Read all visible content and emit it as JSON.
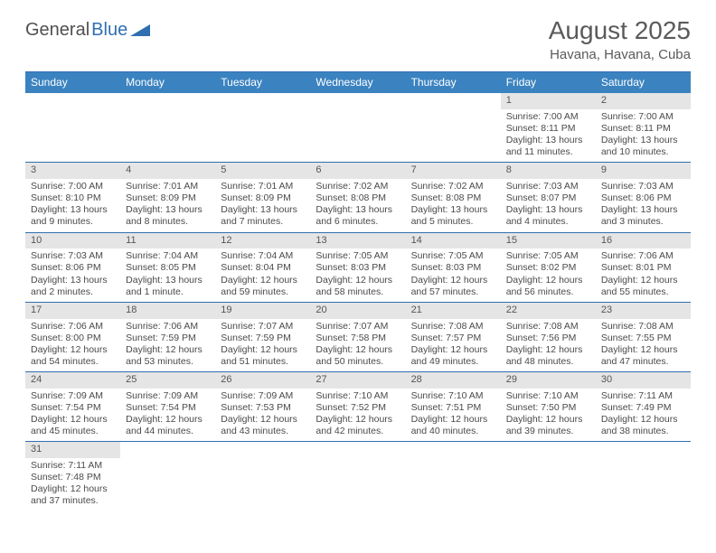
{
  "brand": {
    "part1": "General",
    "part2": "Blue"
  },
  "title": "August 2025",
  "location": "Havana, Havana, Cuba",
  "colors": {
    "header_bg": "#3b83c0",
    "rule": "#2f6fb0",
    "daynum_bg": "#e5e5e5",
    "text": "#4a4a4a"
  },
  "dow": [
    "Sunday",
    "Monday",
    "Tuesday",
    "Wednesday",
    "Thursday",
    "Friday",
    "Saturday"
  ],
  "weeks": [
    [
      null,
      null,
      null,
      null,
      null,
      {
        "n": "1",
        "sr": "7:00 AM",
        "ss": "8:11 PM",
        "dl": "13 hours and 11 minutes."
      },
      {
        "n": "2",
        "sr": "7:00 AM",
        "ss": "8:11 PM",
        "dl": "13 hours and 10 minutes."
      }
    ],
    [
      {
        "n": "3",
        "sr": "7:00 AM",
        "ss": "8:10 PM",
        "dl": "13 hours and 9 minutes."
      },
      {
        "n": "4",
        "sr": "7:01 AM",
        "ss": "8:09 PM",
        "dl": "13 hours and 8 minutes."
      },
      {
        "n": "5",
        "sr": "7:01 AM",
        "ss": "8:09 PM",
        "dl": "13 hours and 7 minutes."
      },
      {
        "n": "6",
        "sr": "7:02 AM",
        "ss": "8:08 PM",
        "dl": "13 hours and 6 minutes."
      },
      {
        "n": "7",
        "sr": "7:02 AM",
        "ss": "8:08 PM",
        "dl": "13 hours and 5 minutes."
      },
      {
        "n": "8",
        "sr": "7:03 AM",
        "ss": "8:07 PM",
        "dl": "13 hours and 4 minutes."
      },
      {
        "n": "9",
        "sr": "7:03 AM",
        "ss": "8:06 PM",
        "dl": "13 hours and 3 minutes."
      }
    ],
    [
      {
        "n": "10",
        "sr": "7:03 AM",
        "ss": "8:06 PM",
        "dl": "13 hours and 2 minutes."
      },
      {
        "n": "11",
        "sr": "7:04 AM",
        "ss": "8:05 PM",
        "dl": "13 hours and 1 minute."
      },
      {
        "n": "12",
        "sr": "7:04 AM",
        "ss": "8:04 PM",
        "dl": "12 hours and 59 minutes."
      },
      {
        "n": "13",
        "sr": "7:05 AM",
        "ss": "8:03 PM",
        "dl": "12 hours and 58 minutes."
      },
      {
        "n": "14",
        "sr": "7:05 AM",
        "ss": "8:03 PM",
        "dl": "12 hours and 57 minutes."
      },
      {
        "n": "15",
        "sr": "7:05 AM",
        "ss": "8:02 PM",
        "dl": "12 hours and 56 minutes."
      },
      {
        "n": "16",
        "sr": "7:06 AM",
        "ss": "8:01 PM",
        "dl": "12 hours and 55 minutes."
      }
    ],
    [
      {
        "n": "17",
        "sr": "7:06 AM",
        "ss": "8:00 PM",
        "dl": "12 hours and 54 minutes."
      },
      {
        "n": "18",
        "sr": "7:06 AM",
        "ss": "7:59 PM",
        "dl": "12 hours and 53 minutes."
      },
      {
        "n": "19",
        "sr": "7:07 AM",
        "ss": "7:59 PM",
        "dl": "12 hours and 51 minutes."
      },
      {
        "n": "20",
        "sr": "7:07 AM",
        "ss": "7:58 PM",
        "dl": "12 hours and 50 minutes."
      },
      {
        "n": "21",
        "sr": "7:08 AM",
        "ss": "7:57 PM",
        "dl": "12 hours and 49 minutes."
      },
      {
        "n": "22",
        "sr": "7:08 AM",
        "ss": "7:56 PM",
        "dl": "12 hours and 48 minutes."
      },
      {
        "n": "23",
        "sr": "7:08 AM",
        "ss": "7:55 PM",
        "dl": "12 hours and 47 minutes."
      }
    ],
    [
      {
        "n": "24",
        "sr": "7:09 AM",
        "ss": "7:54 PM",
        "dl": "12 hours and 45 minutes."
      },
      {
        "n": "25",
        "sr": "7:09 AM",
        "ss": "7:54 PM",
        "dl": "12 hours and 44 minutes."
      },
      {
        "n": "26",
        "sr": "7:09 AM",
        "ss": "7:53 PM",
        "dl": "12 hours and 43 minutes."
      },
      {
        "n": "27",
        "sr": "7:10 AM",
        "ss": "7:52 PM",
        "dl": "12 hours and 42 minutes."
      },
      {
        "n": "28",
        "sr": "7:10 AM",
        "ss": "7:51 PM",
        "dl": "12 hours and 40 minutes."
      },
      {
        "n": "29",
        "sr": "7:10 AM",
        "ss": "7:50 PM",
        "dl": "12 hours and 39 minutes."
      },
      {
        "n": "30",
        "sr": "7:11 AM",
        "ss": "7:49 PM",
        "dl": "12 hours and 38 minutes."
      }
    ],
    [
      {
        "n": "31",
        "sr": "7:11 AM",
        "ss": "7:48 PM",
        "dl": "12 hours and 37 minutes."
      },
      null,
      null,
      null,
      null,
      null,
      null
    ]
  ],
  "labels": {
    "sunrise": "Sunrise:",
    "sunset": "Sunset:",
    "daylight": "Daylight:"
  }
}
